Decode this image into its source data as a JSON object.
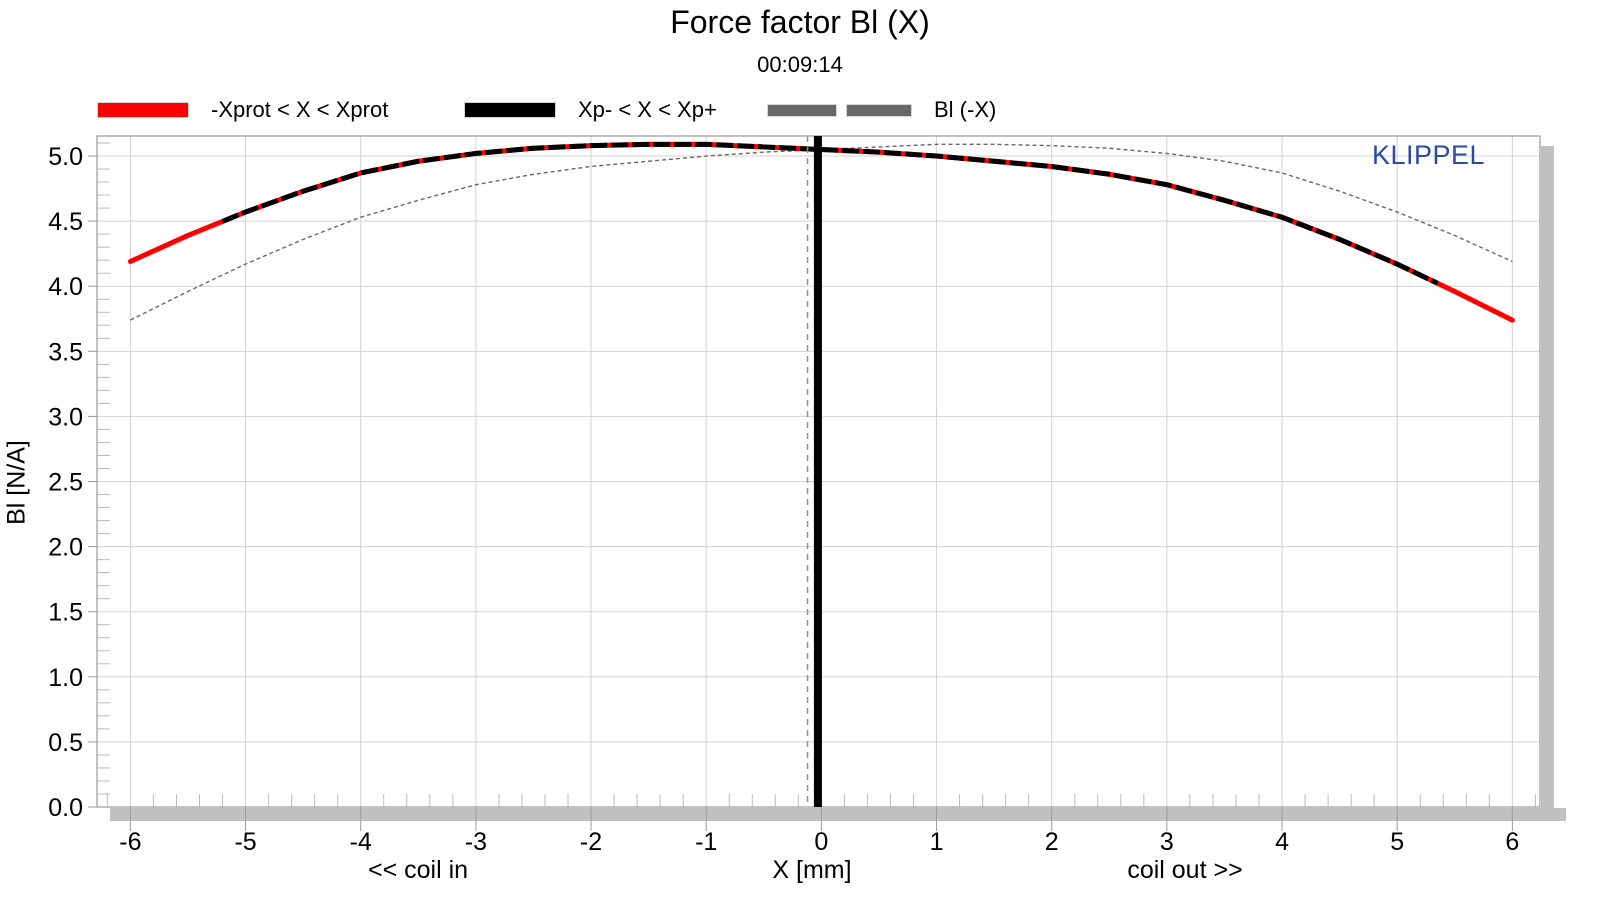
{
  "header": {
    "title": "Force factor Bl (X)",
    "subtitle": "00:09:14"
  },
  "branding": {
    "logo_text": "KLIPPEL",
    "logo_color": "#2B4AA5"
  },
  "chart_data": {
    "type": "line",
    "title": "Force factor Bl (X)",
    "subtitle": "00:09:14",
    "xlabel": "X [mm]",
    "ylabel": "Bl [N/A]",
    "x_caption_left": "<< coil in",
    "x_caption_right": "coil out >>",
    "legend_position": "top",
    "grid": true,
    "xlim": [
      -6.29,
      6.24
    ],
    "ylim": [
      0,
      5.154
    ],
    "x_ticks": [
      -6,
      -5,
      -4,
      -3,
      -2,
      -1,
      0,
      1,
      2,
      3,
      4,
      5,
      6
    ],
    "x_minor_step": 0.2,
    "y_ticks": [
      "0.0",
      "0.5",
      "1.0",
      "1.5",
      "2.0",
      "2.5",
      "3.0",
      "3.5",
      "4.0",
      "4.5",
      "5.0"
    ],
    "y_tick_values": [
      0,
      0.5,
      1.0,
      1.5,
      2.0,
      2.5,
      3.0,
      3.5,
      4.0,
      4.5,
      5.0
    ],
    "y_minor_step": 0.1,
    "x": [
      -6,
      -5.5,
      -5,
      -4.5,
      -4,
      -3.5,
      -3,
      -2.5,
      -2,
      -1.5,
      -1,
      -0.5,
      0,
      0.5,
      1,
      1.5,
      2,
      2.5,
      3,
      3.5,
      4,
      4.5,
      5,
      5.5,
      6
    ],
    "series": [
      {
        "name": "-Xprot < X < Xprot",
        "color": "#FF0000",
        "width": 5,
        "dash": "",
        "y": [
          4.19,
          4.39,
          4.57,
          4.73,
          4.87,
          4.96,
          5.02,
          5.06,
          5.08,
          5.09,
          5.09,
          5.07,
          5.05,
          5.03,
          5.0,
          4.96,
          4.92,
          4.86,
          4.78,
          4.66,
          4.53,
          4.36,
          4.17,
          3.96,
          3.74
        ]
      },
      {
        "name": "Xp- < X < Xp+",
        "color": "#000000",
        "width": 5,
        "dash": "17 4",
        "clip_range": [
          -5.2,
          5.35
        ],
        "derived_from": 0
      },
      {
        "name": "Bl (-X)",
        "color": "#686868",
        "width": 1.4,
        "dash": "4 3",
        "y": [
          3.74,
          3.96,
          4.17,
          4.36,
          4.53,
          4.66,
          4.78,
          4.86,
          4.92,
          4.96,
          5.0,
          5.03,
          5.05,
          5.07,
          5.09,
          5.09,
          5.08,
          5.06,
          5.02,
          4.96,
          4.87,
          4.73,
          4.57,
          4.39,
          4.19
        ]
      }
    ],
    "markers": [
      {
        "type": "vline",
        "x": -0.12,
        "color": "#909090",
        "width": 1.5,
        "dash": "6 5",
        "name": "rest-position-dashed-line"
      },
      {
        "type": "vline",
        "x": -0.03,
        "color": "#000000",
        "width": 8,
        "dash": "",
        "name": "x-zero-marker-line"
      }
    ],
    "style": {
      "grid_color": "#d2d2d2",
      "minor_tick_color": "#bbbbbb",
      "major_tick_color": "#9a9a9a",
      "frame_color": "#9a9a9a",
      "shadow_color": "#c0c0c0"
    }
  }
}
